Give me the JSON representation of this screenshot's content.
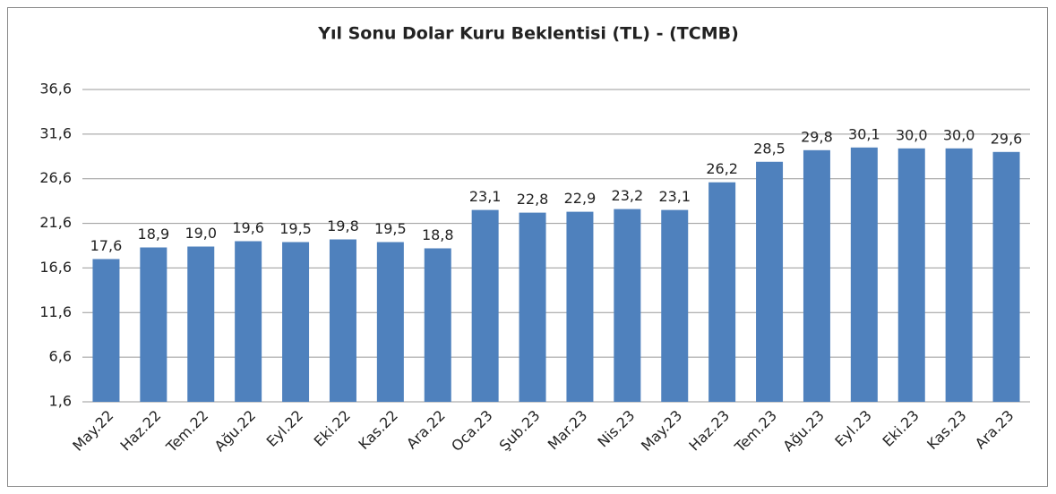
{
  "chart_data": {
    "type": "bar",
    "title": "Yıl Sonu Dolar Kuru Beklentisi (TL) - (TCMB)",
    "categories": [
      "May.22",
      "Haz.22",
      "Tem.22",
      "Ağu.22",
      "Eyl.22",
      "Eki.22",
      "Kas.22",
      "Ara.22",
      "Oca.23",
      "Şub.23",
      "Mar.23",
      "Nis.23",
      "May.23",
      "Haz.23",
      "Tem.23",
      "Ağu.23",
      "Eyl.23",
      "Eki.23",
      "Kas.23",
      "Ara.23"
    ],
    "values": [
      17.6,
      18.9,
      19.0,
      19.6,
      19.5,
      19.8,
      19.5,
      18.8,
      23.1,
      22.8,
      22.9,
      23.2,
      23.1,
      26.2,
      28.5,
      29.8,
      30.1,
      30.0,
      30.0,
      29.6
    ],
    "value_labels": [
      "17,6",
      "18,9",
      "19,0",
      "19,6",
      "19,5",
      "19,8",
      "19,5",
      "18,8",
      "23,1",
      "22,8",
      "22,9",
      "23,2",
      "23,1",
      "26,2",
      "28,5",
      "29,8",
      "30,1",
      "30,0",
      "30,0",
      "29,6"
    ],
    "color": "#4f81bd",
    "ylim": [
      1.6,
      36.6
    ],
    "yticks": [
      {
        "value": 1.6,
        "label": "1,6"
      },
      {
        "value": 6.6,
        "label": "6,6"
      },
      {
        "value": 11.6,
        "label": "11,6"
      },
      {
        "value": 16.6,
        "label": "16,6"
      },
      {
        "value": 21.6,
        "label": "21,6"
      },
      {
        "value": 26.6,
        "label": "26,6"
      },
      {
        "value": 31.6,
        "label": "31,6"
      },
      {
        "value": 36.6,
        "label": "36,6"
      }
    ],
    "grid": true
  }
}
